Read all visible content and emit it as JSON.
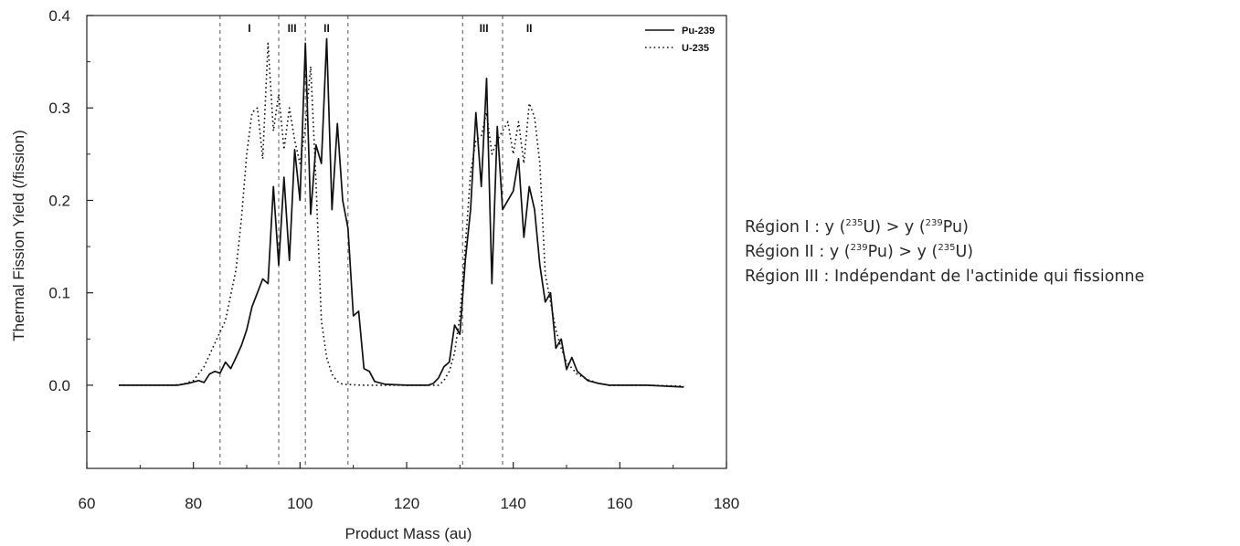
{
  "chart_data": {
    "type": "line",
    "xlabel": "Product Mass (au)",
    "ylabel": "Thermal Fission Yield (/fission)",
    "xlim": [
      60,
      180
    ],
    "ylim": [
      -0.09,
      0.4
    ],
    "xticks": [
      "60",
      "80",
      "100",
      "120",
      "140",
      "160",
      "180"
    ],
    "yticks": [
      "0.0",
      "0.1",
      "0.2",
      "0.3",
      "0.4"
    ],
    "legend_position": "top-right",
    "region_boundaries": [
      85,
      96,
      101,
      109,
      130.5,
      138
    ],
    "region_labels": [
      {
        "text": "I",
        "x": 90.5
      },
      {
        "text": "III",
        "x": 98.5
      },
      {
        "text": "II",
        "x": 105
      },
      {
        "text": "III",
        "x": 134.5
      },
      {
        "text": "II",
        "x": 143
      }
    ],
    "series": [
      {
        "name": "Pu-239",
        "style": "solid",
        "points": [
          [
            66,
            0
          ],
          [
            70,
            0
          ],
          [
            74,
            0
          ],
          [
            77,
            0
          ],
          [
            79,
            0.002
          ],
          [
            81,
            0.005
          ],
          [
            82,
            0.003
          ],
          [
            83,
            0.012
          ],
          [
            84,
            0.015
          ],
          [
            85,
            0.013
          ],
          [
            86,
            0.025
          ],
          [
            87,
            0.018
          ],
          [
            88,
            0.03
          ],
          [
            89,
            0.043
          ],
          [
            90,
            0.06
          ],
          [
            91,
            0.085
          ],
          [
            92,
            0.1
          ],
          [
            93,
            0.115
          ],
          [
            94,
            0.11
          ],
          [
            95,
            0.215
          ],
          [
            96,
            0.13
          ],
          [
            97,
            0.225
          ],
          [
            98,
            0.135
          ],
          [
            99,
            0.255
          ],
          [
            100,
            0.2
          ],
          [
            101,
            0.37
          ],
          [
            102,
            0.185
          ],
          [
            103,
            0.26
          ],
          [
            104,
            0.24
          ],
          [
            105,
            0.375
          ],
          [
            106,
            0.19
          ],
          [
            107,
            0.283
          ],
          [
            108,
            0.2
          ],
          [
            109,
            0.17
          ],
          [
            110,
            0.075
          ],
          [
            111,
            0.08
          ],
          [
            112,
            0.018
          ],
          [
            113,
            0.015
          ],
          [
            114,
            0.004
          ],
          [
            116,
            0.001
          ],
          [
            120,
            0
          ],
          [
            124,
            0
          ],
          [
            125,
            0.002
          ],
          [
            126,
            0.008
          ],
          [
            127,
            0.02
          ],
          [
            128,
            0.025
          ],
          [
            129,
            0.065
          ],
          [
            130,
            0.055
          ],
          [
            131,
            0.135
          ],
          [
            132,
            0.19
          ],
          [
            133,
            0.295
          ],
          [
            134,
            0.215
          ],
          [
            135,
            0.332
          ],
          [
            136,
            0.11
          ],
          [
            137,
            0.28
          ],
          [
            138,
            0.19
          ],
          [
            139,
            0.2
          ],
          [
            140,
            0.21
          ],
          [
            141,
            0.245
          ],
          [
            142,
            0.16
          ],
          [
            143,
            0.215
          ],
          [
            144,
            0.19
          ],
          [
            145,
            0.13
          ],
          [
            146,
            0.09
          ],
          [
            147,
            0.1
          ],
          [
            148,
            0.04
          ],
          [
            149,
            0.05
          ],
          [
            150,
            0.017
          ],
          [
            151,
            0.03
          ],
          [
            152,
            0.015
          ],
          [
            154,
            0.005
          ],
          [
            156,
            0.002
          ],
          [
            158,
            0
          ],
          [
            165,
            0
          ],
          [
            172,
            -0.002
          ]
        ]
      },
      {
        "name": "U-235",
        "style": "dotted",
        "points": [
          [
            66,
            0
          ],
          [
            72,
            0
          ],
          [
            76,
            0
          ],
          [
            78,
            0.001
          ],
          [
            80,
            0.005
          ],
          [
            82,
            0.02
          ],
          [
            84,
            0.045
          ],
          [
            86,
            0.07
          ],
          [
            88,
            0.125
          ],
          [
            89,
            0.18
          ],
          [
            90,
            0.25
          ],
          [
            91,
            0.295
          ],
          [
            92,
            0.3
          ],
          [
            93,
            0.245
          ],
          [
            94,
            0.37
          ],
          [
            95,
            0.275
          ],
          [
            96,
            0.315
          ],
          [
            97,
            0.255
          ],
          [
            98,
            0.3
          ],
          [
            99,
            0.265
          ],
          [
            100,
            0.24
          ],
          [
            101,
            0.28
          ],
          [
            102,
            0.345
          ],
          [
            103,
            0.22
          ],
          [
            104,
            0.07
          ],
          [
            105,
            0.03
          ],
          [
            106,
            0.012
          ],
          [
            107,
            0.004
          ],
          [
            108,
            0.001
          ],
          [
            112,
            0
          ],
          [
            126,
            0
          ],
          [
            127,
            0.005
          ],
          [
            128,
            0.015
          ],
          [
            129,
            0.035
          ],
          [
            130,
            0.075
          ],
          [
            131,
            0.15
          ],
          [
            132,
            0.23
          ],
          [
            133,
            0.265
          ],
          [
            134,
            0.27
          ],
          [
            135,
            0.295
          ],
          [
            136,
            0.25
          ],
          [
            137,
            0.265
          ],
          [
            138,
            0.275
          ],
          [
            139,
            0.285
          ],
          [
            140,
            0.25
          ],
          [
            141,
            0.285
          ],
          [
            142,
            0.24
          ],
          [
            143,
            0.305
          ],
          [
            144,
            0.29
          ],
          [
            145,
            0.24
          ],
          [
            146,
            0.12
          ],
          [
            147,
            0.09
          ],
          [
            148,
            0.06
          ],
          [
            149,
            0.04
          ],
          [
            150,
            0.025
          ],
          [
            152,
            0.012
          ],
          [
            154,
            0.006
          ],
          [
            156,
            0.002
          ],
          [
            158,
            0
          ],
          [
            165,
            0
          ],
          [
            172,
            -0.001
          ]
        ]
      }
    ]
  },
  "notes": [
    {
      "parts": [
        "Région I :   y (",
        "235",
        "U)   > y (",
        "239",
        "Pu)"
      ]
    },
    {
      "parts": [
        "Région II : y (",
        "239",
        "Pu) > y (",
        "235",
        "U)"
      ]
    },
    {
      "parts": [
        "Région III : Indépendant de l'actinide qui fissionne"
      ]
    }
  ]
}
